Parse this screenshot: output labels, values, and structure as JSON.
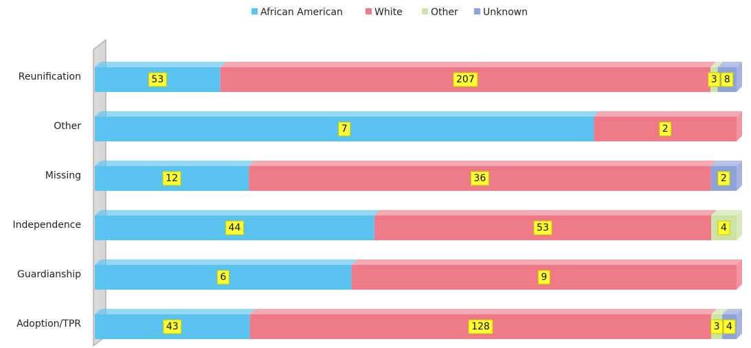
{
  "chart_data": {
    "type": "bar",
    "orientation": "horizontal",
    "stacked": "percent",
    "legend": "top",
    "categories": [
      "Reunification",
      "Other",
      "Missing",
      "Independence",
      "Guardianship",
      "Adoption/TPR"
    ],
    "series": [
      {
        "name": "African American",
        "color": "#5bc3ef",
        "values": [
          53,
          7,
          12,
          44,
          6,
          43
        ]
      },
      {
        "name": "White",
        "color": "#ee7b87",
        "values": [
          207,
          2,
          36,
          53,
          9,
          128
        ]
      },
      {
        "name": "Other",
        "color": "#cde4a8",
        "values": [
          3,
          null,
          null,
          4,
          null,
          3
        ]
      },
      {
        "name": "Unknown",
        "color": "#8fa3d9",
        "values": [
          8,
          null,
          2,
          null,
          null,
          4
        ]
      }
    ]
  }
}
